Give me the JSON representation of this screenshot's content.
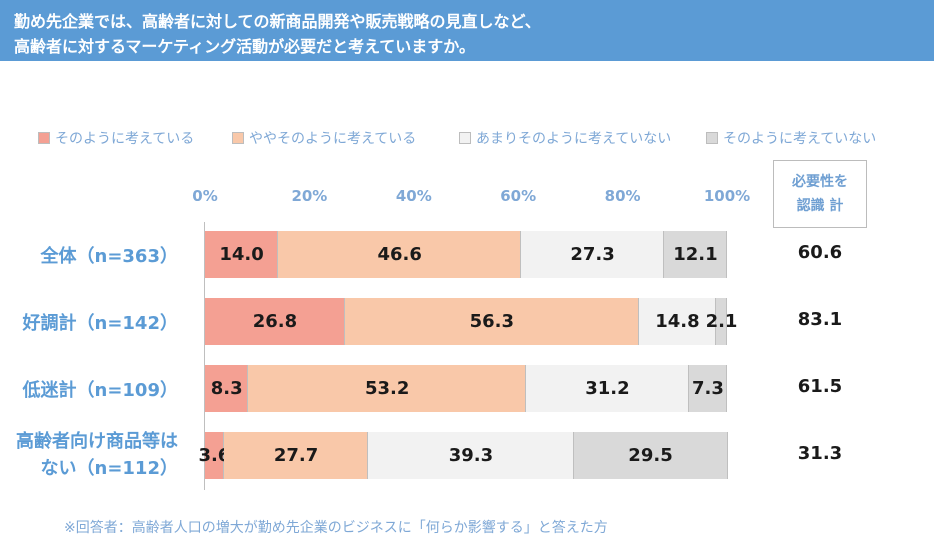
{
  "header": {
    "line1": "勤め先企業では、高齢者に対しての新商品開発や販売戦略の見直しなど、",
    "line2": "高齢者に対するマーケティング活動が必要だと考えていますか。"
  },
  "legend": [
    {
      "label": "そのように考えている",
      "color": "#f4a093"
    },
    {
      "label": "ややそのように考えている",
      "color": "#f9c8a9"
    },
    {
      "label": "あまりそのように考えていない",
      "color": "#f2f2f2"
    },
    {
      "label": "そのように考えていない",
      "color": "#d9d9d9"
    }
  ],
  "total_header": {
    "line1": "必要性を",
    "line2": "認識 計"
  },
  "footnote": "※回答者：高齢者人口の増大が勤め先企業のビジネスに「何らか影響する」と答えた方",
  "chart_data": {
    "type": "bar",
    "orientation": "horizontal",
    "stacked": true,
    "xlim": [
      0,
      100
    ],
    "x_ticks": [
      "0%",
      "20%",
      "40%",
      "60%",
      "80%",
      "100%"
    ],
    "categories": [
      "全体（n=363）",
      "好調計（n=142）",
      "低迷計（n=109）",
      "高齢者向け商品等はない（n=112）"
    ],
    "category_lines": [
      [
        "全体（n=363）"
      ],
      [
        "好調計（n=142）"
      ],
      [
        "低迷計（n=109）"
      ],
      [
        "高齢者向け商品等は",
        "ない（n=112）"
      ]
    ],
    "series": [
      {
        "name": "そのように考えている",
        "color": "#f4a093",
        "values": [
          14.0,
          26.8,
          8.3,
          3.6
        ],
        "labels": [
          "14.0",
          "26.8",
          "8.3",
          "3.6"
        ]
      },
      {
        "name": "ややそのように考えている",
        "color": "#f9c8a9",
        "values": [
          46.6,
          56.3,
          53.2,
          27.7
        ],
        "labels": [
          "46.6",
          "56.3",
          "53.2",
          "27.7"
        ]
      },
      {
        "name": "あまりそのように考えていない",
        "color": "#f2f2f2",
        "values": [
          27.3,
          14.8,
          31.2,
          39.3
        ],
        "labels": [
          "27.3",
          "14.8",
          "31.2",
          "39.3"
        ]
      },
      {
        "name": "そのように考えていない",
        "color": "#d9d9d9",
        "values": [
          12.1,
          2.1,
          7.3,
          29.5
        ],
        "labels": [
          "12.1",
          "2.1",
          "7.3",
          "29.5"
        ]
      }
    ],
    "totals": {
      "name": "必要性を認識 計",
      "values": [
        "60.6",
        "83.1",
        "61.5",
        "31.3"
      ]
    }
  }
}
